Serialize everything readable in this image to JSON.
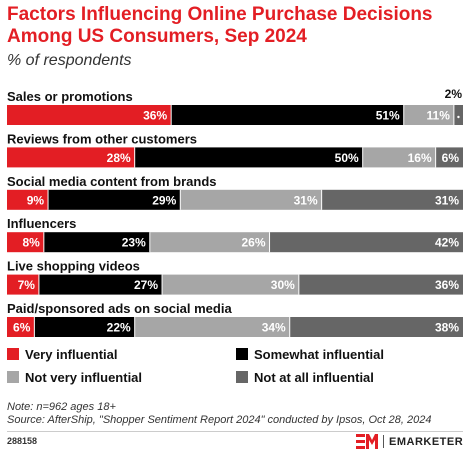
{
  "colors": {
    "very": "#e31e24",
    "somewhat": "#000000",
    "not_very": "#a6a6a6",
    "not_at_all": "#666666"
  },
  "chart_data": {
    "type": "bar",
    "stacked": true,
    "orientation": "horizontal",
    "title": "Factors Influencing Online Purchase Decisions Among US Consumers, Sep 2024",
    "subtitle": "% of respondents",
    "categories": [
      "Sales or promotions",
      "Reviews from other customers",
      "Social media content from brands",
      "Influencers",
      "Live shopping videos",
      "Paid/sponsored ads on social media"
    ],
    "series": [
      {
        "name": "Very influential",
        "values": [
          36,
          28,
          9,
          8,
          7,
          6
        ]
      },
      {
        "name": "Somewhat influential",
        "values": [
          51,
          50,
          29,
          23,
          27,
          22
        ]
      },
      {
        "name": "Not very influential",
        "values": [
          11,
          16,
          31,
          26,
          30,
          34
        ]
      },
      {
        "name": "Not at all influential",
        "values": [
          2,
          6,
          31,
          42,
          36,
          38
        ]
      }
    ],
    "legend_position": "bottom",
    "grid": false
  },
  "footer": {
    "note": "Note: n=962 ages 18+",
    "source": "Source: AfterShip, \"Shopper Sentiment Report 2024\" conducted by Ipsos, Oct 28, 2024",
    "chart_id": "288158",
    "brand_name": "EMARKETER"
  }
}
